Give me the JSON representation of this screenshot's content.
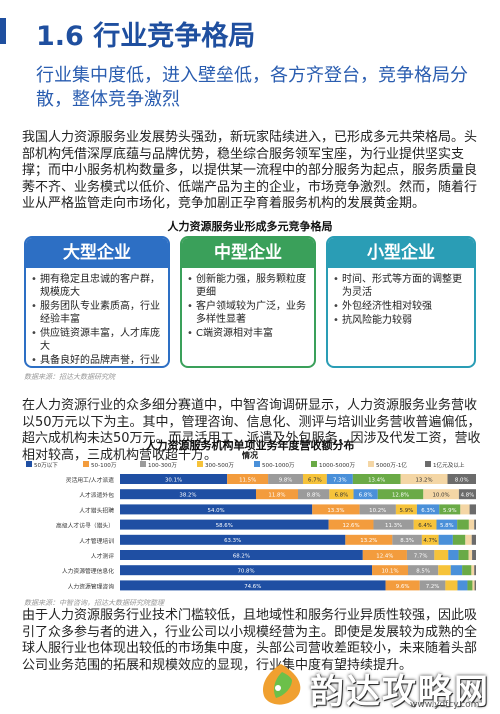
{
  "header": {
    "title": "1.6 行业竞争格局"
  },
  "subtitle": "行业集中度低，进入壁垒低，各方齐登台，竞争格局分散，整体竞争激烈",
  "paragraphs": {
    "p1": "我国人力资源服务业发展势头强劲，新玩家陆续进入，已形成多元共荣格局。头部机构凭借深厚底蕴与品牌优势，稳坐综合服务领军宝座，为行业提供坚实支撑；而中小服务机构数量多，以提供某一流程中的部分服务为起点，服务质量良莠不齐、业务模式以低价、低端产品为主的企业，市场竞争激烈。然而，随着行业从严格监管走向市场化，竞争加剧正孕育着服务机构的发展黄金期。",
    "p2": "在人力资源行业的众多细分赛道中，中智咨询调研显示，人力资源服务业务营收以50万元以下为主。其中，管理咨询、信息化、测评与培训业务营收普遍偏低，超六成机构未达50万元。而灵活用工、派遣及外包服务，因涉及代发工资，营收相对较高，三成机构营收超千万。",
    "p3": "由于人力资源服务行业技术门槛较低，且地域性和服务行业异质性较强，因此吸引了众多参与者的进入，行业公司以小规模经营为主。即使是发展较为成熟的全球人服行业也体现出较低的市场集中度，头部公司营收差距较小，未来随着头部公司业务范围的拓展和规模效应的显现，行业集中度有望持续提升。"
  },
  "diagram": {
    "title": "人力资源服务业形成多元竞争格局",
    "cards": [
      {
        "name": "大型企业",
        "items": [
          "拥有稳定且忠诚的客户群，规模庞大",
          "服务团队专业素质高，行业经验丰富",
          "供应链资源丰富，人才库庞大",
          "具备良好的品牌声誉，行业影响力大"
        ]
      },
      {
        "name": "中型企业",
        "items": [
          "创新能力强，服务颗粒度更细",
          "客户领域较为广泛，业务多样性显著",
          "C端资源相对丰富"
        ]
      },
      {
        "name": "小型企业",
        "items": [
          "时间、形式等方面的调整更为灵活",
          "外包经济性相对较强",
          "抗风险能力较弱"
        ]
      }
    ],
    "source": "数据来源：招达大数据研究院"
  },
  "chart_source": "数据来源：中智咨询，招达大数据研究院整理",
  "chart_data": {
    "type": "bar",
    "orientation": "horizontal-stacked-100",
    "title": "人力资源服务机构单项业务年度营收额分布",
    "subtitle": "情况",
    "legend_position": "top",
    "categories": [
      "灵活用工/人才派遣",
      "人才派遣外包",
      "人才猎头招聘",
      "高级人才访寻（猎头）",
      "人才管理培训",
      "人才测评",
      "人力资源管理信息化",
      "人力资源管理咨询"
    ],
    "series": [
      {
        "name": "50万以下",
        "color": "#1f4fa3",
        "values": [
          30.1,
          38.2,
          54.0,
          58.6,
          63.3,
          68.2,
          70.8,
          74.6
        ],
        "labels": [
          "30.1%",
          "38.2%",
          "54.0%",
          "58.6%",
          "63.3%",
          "68.2%",
          "70.8%",
          "74.6%"
        ]
      },
      {
        "name": "50-100万",
        "color": "#f39c3d",
        "values": [
          11.5,
          11.8,
          13.3,
          12.6,
          13.2,
          12.4,
          10.1,
          9.6
        ],
        "labels": [
          "11.5%",
          "11.8%",
          "13.3%",
          "12.6%",
          "13.2%",
          "12.4%",
          "10.1%",
          "9.6%"
        ]
      },
      {
        "name": "100-300万",
        "color": "#9b9b9b",
        "values": [
          9.8,
          8.8,
          10.2,
          11.3,
          8.3,
          7.7,
          8.5,
          7.2
        ],
        "labels": [
          "9.8%",
          "8.8%",
          "10.2%",
          "11.3%",
          "8.3%",
          "7.7%",
          "8.5%",
          "7.2%"
        ]
      },
      {
        "name": "300-500万",
        "color": "#f6c33a",
        "values": [
          6.7,
          6.8,
          5.9,
          6.4,
          4.7,
          3.9,
          3.5,
          3.4
        ],
        "labels": [
          "6.7%",
          "6.8%",
          "5.9%",
          "6.4%",
          "4.7%",
          "3.9%",
          "3.5%",
          "3.4%"
        ]
      },
      {
        "name": "500-1000万",
        "color": "#4a90d9",
        "values": [
          7.3,
          6.8,
          6.3,
          5.8,
          4.0,
          2.9,
          3.2,
          2.8
        ],
        "labels": [
          "7.3%",
          "6.8%",
          "6.3%",
          "5.8%",
          "4.0%",
          "2.9%",
          "3.2%",
          "2.8%"
        ]
      },
      {
        "name": "1000-5000万",
        "color": "#6aaa46",
        "values": [
          13.4,
          12.8,
          5.9,
          3.3,
          3.5,
          2.8,
          2.6,
          1.4
        ],
        "labels": [
          "13.4%",
          "12.8%",
          "5.9%",
          "3.3%",
          "3.5%",
          "2.8%",
          "2.6%",
          "1.4%"
        ]
      },
      {
        "name": "5000万-1亿",
        "color": "#f4d6a5",
        "values": [
          13.2,
          10.0,
          2.6,
          1.5,
          1.8,
          1.0,
          0.8,
          0.6
        ],
        "labels": [
          "13.2%",
          "10.0%",
          "2.6%",
          "1.5%",
          "1.8%",
          "1.0%",
          "0.8%",
          "0.6%"
        ]
      },
      {
        "name": "1亿元及以上",
        "color": "#6b6b6b",
        "values": [
          8.0,
          4.8,
          1.8,
          0.5,
          1.2,
          1.1,
          0.5,
          0.4
        ],
        "labels": [
          "8.0%",
          "4.8%",
          "1.8%",
          "0.5%",
          "1.2%",
          "1.1%",
          "0.5%",
          "0.4%"
        ]
      }
    ],
    "xlim": [
      0,
      100
    ]
  },
  "watermark": {
    "text": "韵达攻略网",
    "url": "www.ydfcy.com",
    "colors": {
      "orange": "#f0a030",
      "green": "#6cc04a"
    }
  }
}
